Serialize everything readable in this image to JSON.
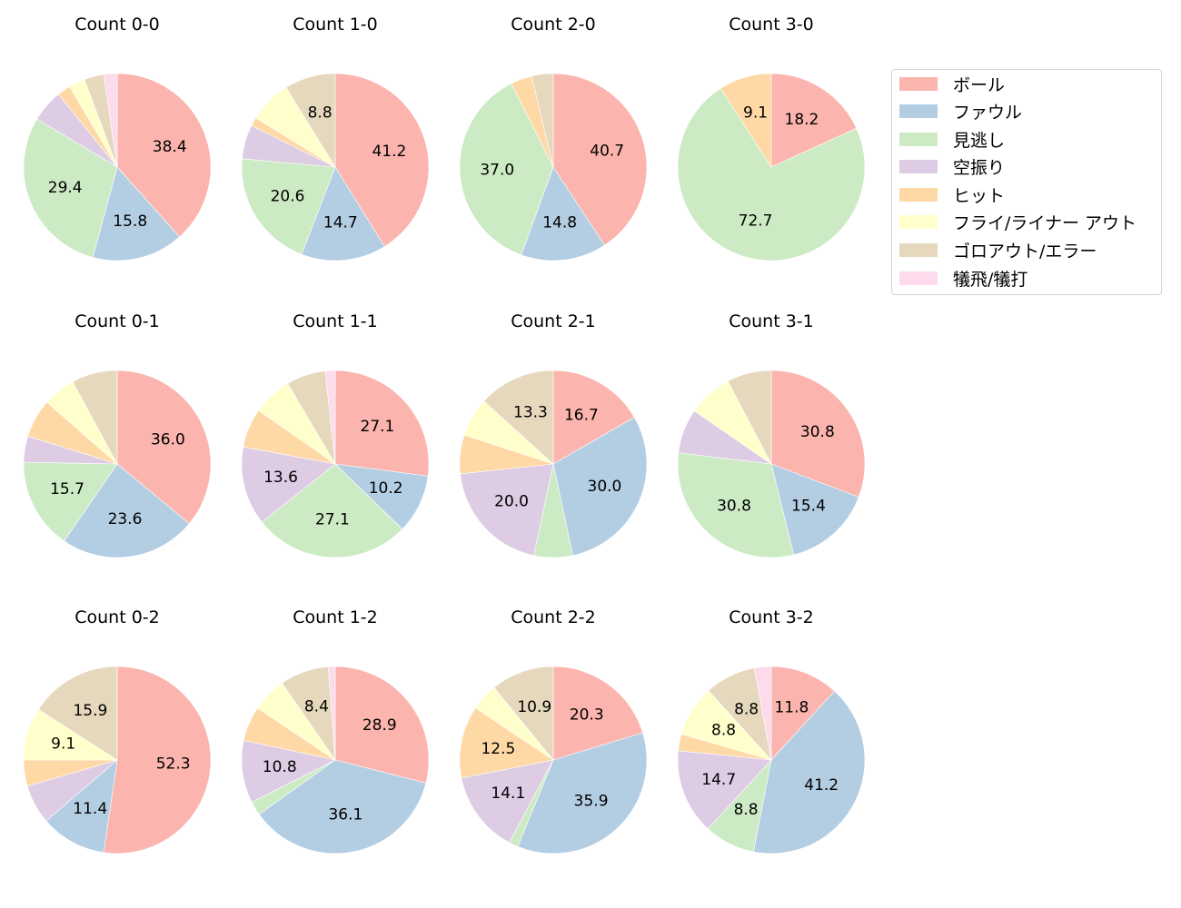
{
  "colors": {
    "ボール": "#fbb4ae",
    "ファウル": "#b3cde3",
    "見逃し": "#ccebc5",
    "空振り": "#decbe4",
    "ヒット": "#fed9a6",
    "フライ/ライナー アウト": "#ffffcc",
    "ゴロアウト/エラー": "#e5d8bd",
    "犠飛/犠打": "#fddaec"
  },
  "legend": {
    "items": [
      {
        "label": "ボール",
        "color": "#fbb4ae"
      },
      {
        "label": "ファウル",
        "color": "#b3cde3"
      },
      {
        "label": "見逃し",
        "color": "#ccebc5"
      },
      {
        "label": "空振り",
        "color": "#decbe4"
      },
      {
        "label": "ヒット",
        "color": "#fed9a6"
      },
      {
        "label": "フライ/ライナー アウト",
        "color": "#ffffcc"
      },
      {
        "label": "ゴロアウト/エラー",
        "color": "#e5d8bd"
      },
      {
        "label": "犠飛/犠打",
        "color": "#fddaec"
      }
    ]
  },
  "chart_data": [
    {
      "type": "pie",
      "title": "Count 0-0",
      "categories": [
        "ボール",
        "ファウル",
        "見逃し",
        "空振り",
        "ヒット",
        "フライ/ライナー アウト",
        "ゴロアウト/エラー",
        "犠飛/犠打"
      ],
      "values": [
        38.4,
        15.8,
        29.4,
        5.6,
        2.3,
        2.8,
        3.4,
        2.3
      ],
      "labels_shown": [
        "38.4",
        "15.8",
        "29.4",
        "",
        "",
        "",
        "",
        ""
      ]
    },
    {
      "type": "pie",
      "title": "Count 1-0",
      "categories": [
        "ボール",
        "ファウル",
        "見逃し",
        "空振り",
        "ヒット",
        "フライ/ライナー アウト",
        "ゴロアウト/エラー",
        "犠飛/犠打"
      ],
      "values": [
        41.2,
        14.7,
        20.6,
        5.9,
        1.5,
        7.4,
        8.8,
        0
      ],
      "labels_shown": [
        "41.2",
        "14.7",
        "20.6",
        "",
        "",
        "",
        "8.8",
        ""
      ]
    },
    {
      "type": "pie",
      "title": "Count 2-0",
      "categories": [
        "ボール",
        "ファウル",
        "見逃し",
        "空振り",
        "ヒット",
        "フライ/ライナー アウト",
        "ゴロアウト/エラー",
        "犠飛/犠打"
      ],
      "values": [
        40.7,
        14.8,
        37.0,
        0,
        3.7,
        0,
        3.7,
        0
      ],
      "labels_shown": [
        "40.7",
        "14.8",
        "37.0",
        "",
        "",
        "",
        "",
        ""
      ]
    },
    {
      "type": "pie",
      "title": "Count 3-0",
      "categories": [
        "ボール",
        "ファウル",
        "見逃し",
        "空振り",
        "ヒット",
        "フライ/ライナー アウト",
        "ゴロアウト/エラー",
        "犠飛/犠打"
      ],
      "values": [
        18.2,
        0,
        72.7,
        0,
        9.1,
        0,
        0,
        0
      ],
      "labels_shown": [
        "18.2",
        "",
        "72.7",
        "",
        "9.1",
        "",
        "",
        ""
      ]
    },
    {
      "type": "pie",
      "title": "Count 0-1",
      "categories": [
        "ボール",
        "ファウル",
        "見逃し",
        "空振り",
        "ヒット",
        "フライ/ライナー アウト",
        "ゴロアウト/エラー",
        "犠飛/犠打"
      ],
      "values": [
        36.0,
        23.6,
        15.7,
        4.5,
        6.7,
        5.6,
        7.9,
        0
      ],
      "labels_shown": [
        "36.0",
        "23.6",
        "15.7",
        "",
        "",
        "",
        "",
        ""
      ]
    },
    {
      "type": "pie",
      "title": "Count 1-1",
      "categories": [
        "ボール",
        "ファウル",
        "見逃し",
        "空振り",
        "ヒット",
        "フライ/ライナー アウト",
        "ゴロアウト/エラー",
        "犠飛/犠打"
      ],
      "values": [
        27.1,
        10.2,
        27.1,
        13.6,
        6.8,
        6.8,
        6.8,
        1.7
      ],
      "labels_shown": [
        "27.1",
        "10.2",
        "27.1",
        "13.6",
        "",
        "",
        "",
        ""
      ]
    },
    {
      "type": "pie",
      "title": "Count 2-1",
      "categories": [
        "ボール",
        "ファウル",
        "見逃し",
        "空振り",
        "ヒット",
        "フライ/ライナー アウト",
        "ゴロアウト/エラー",
        "犠飛/犠打"
      ],
      "values": [
        16.7,
        30.0,
        6.7,
        20.0,
        6.7,
        6.7,
        13.3,
        0
      ],
      "labels_shown": [
        "16.7",
        "30.0",
        "",
        "20.0",
        "",
        "",
        "13.3",
        ""
      ]
    },
    {
      "type": "pie",
      "title": "Count 3-1",
      "categories": [
        "ボール",
        "ファウル",
        "見逃し",
        "空振り",
        "ヒット",
        "フライ/ライナー アウト",
        "ゴロアウト/エラー",
        "犠飛/犠打"
      ],
      "values": [
        30.8,
        15.4,
        30.8,
        7.7,
        0,
        7.7,
        7.7,
        0
      ],
      "labels_shown": [
        "30.8",
        "15.4",
        "30.8",
        "",
        "",
        "",
        "",
        ""
      ]
    },
    {
      "type": "pie",
      "title": "Count 0-2",
      "categories": [
        "ボール",
        "ファウル",
        "見逃し",
        "空振り",
        "ヒット",
        "フライ/ライナー アウト",
        "ゴロアウト/エラー",
        "犠飛/犠打"
      ],
      "values": [
        52.3,
        11.4,
        0,
        6.8,
        4.5,
        9.1,
        15.9,
        0
      ],
      "labels_shown": [
        "52.3",
        "11.4",
        "",
        "",
        "",
        "9.1",
        "15.9",
        ""
      ]
    },
    {
      "type": "pie",
      "title": "Count 1-2",
      "categories": [
        "ボール",
        "ファウル",
        "見逃し",
        "空振り",
        "ヒット",
        "フライ/ライナー アウト",
        "ゴロアウト/エラー",
        "犠飛/犠打"
      ],
      "values": [
        28.9,
        36.1,
        2.4,
        10.8,
        6.0,
        6.0,
        8.4,
        1.2
      ],
      "labels_shown": [
        "28.9",
        "36.1",
        "",
        "10.8",
        "",
        "",
        "8.4",
        ""
      ]
    },
    {
      "type": "pie",
      "title": "Count 2-2",
      "categories": [
        "ボール",
        "ファウル",
        "見逃し",
        "空振り",
        "ヒット",
        "フライ/ライナー アウト",
        "ゴロアウト/エラー",
        "犠飛/犠打"
      ],
      "values": [
        20.3,
        35.9,
        1.6,
        14.1,
        12.5,
        4.7,
        10.9,
        0
      ],
      "labels_shown": [
        "20.3",
        "35.9",
        "",
        "14.1",
        "12.5",
        "",
        "10.9",
        ""
      ]
    },
    {
      "type": "pie",
      "title": "Count 3-2",
      "categories": [
        "ボール",
        "ファウル",
        "見逃し",
        "空振り",
        "ヒット",
        "フライ/ライナー アウト",
        "ゴロアウト/エラー",
        "犠飛/犠打"
      ],
      "values": [
        11.8,
        41.2,
        8.8,
        14.7,
        2.9,
        8.8,
        8.8,
        2.9
      ],
      "labels_shown": [
        "11.8",
        "41.2",
        "8.8",
        "14.7",
        "",
        "8.8",
        "8.8",
        ""
      ]
    }
  ],
  "layout": {
    "label_threshold": 8.0,
    "start_angle_deg": 90,
    "direction": "clockwise",
    "legend_position": "upper right"
  }
}
